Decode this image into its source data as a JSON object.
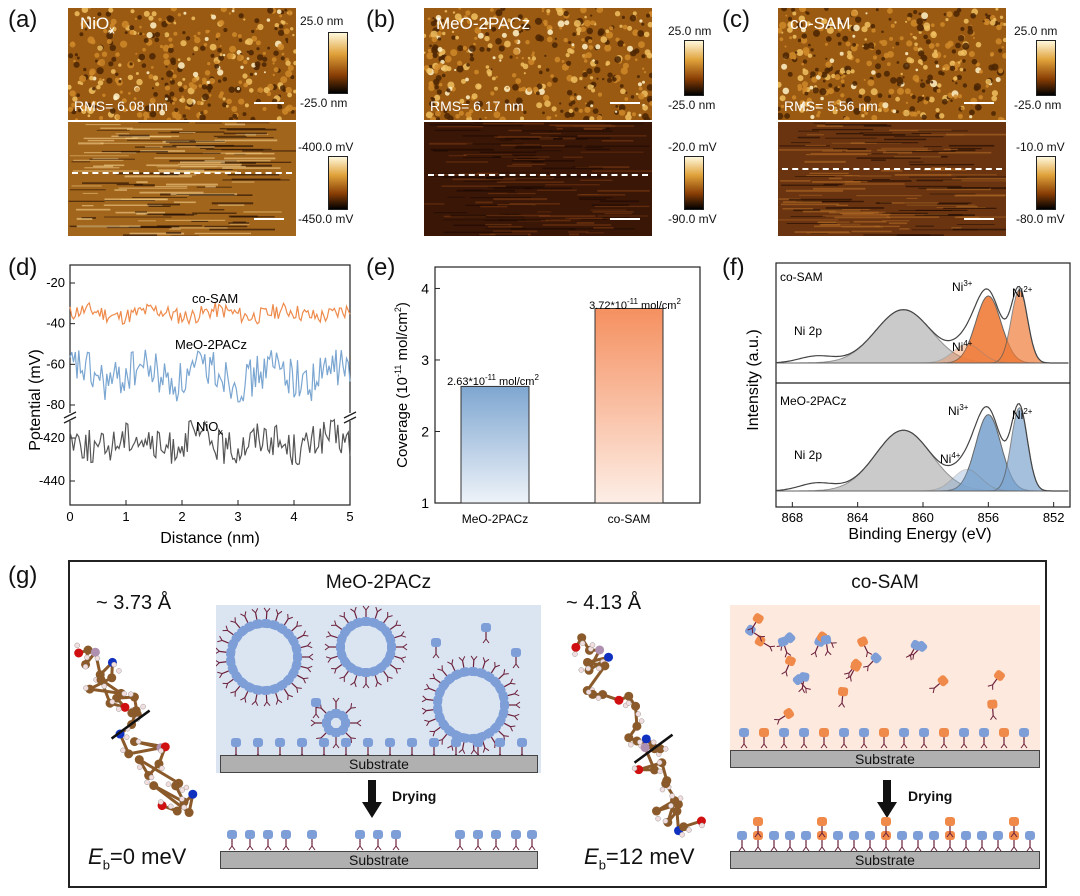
{
  "panel_labels": [
    "(a)",
    "(b)",
    "(c)",
    "(d)",
    "(e)",
    "(f)",
    "(g)"
  ],
  "afm": [
    {
      "sample": "NiO",
      "sample_sub": "x",
      "rms": "RMS= 6.08 nm",
      "height_max": "25.0 nm",
      "height_min": "-25.0 nm",
      "pot_max": "-400.0 mV",
      "pot_min": "-450.0 mV"
    },
    {
      "sample": "MeO-2PACz",
      "sample_sub": "",
      "rms": "RMS= 6.17 nm",
      "height_max": "25.0 nm",
      "height_min": "-25.0 nm",
      "pot_max": "-20.0 mV",
      "pot_min": "-90.0 mV"
    },
    {
      "sample": "co-SAM",
      "sample_sub": "",
      "rms": "RMS= 5.56 nm",
      "height_max": "25.0 nm",
      "height_min": "-25.0 nm",
      "pot_max": "-10.0 mV",
      "pot_min": "-80.0 mV"
    }
  ],
  "chart_data": [
    {
      "type": "line",
      "panel": "d",
      "xlabel": "Distance (nm)",
      "ylabel": "Potential (mV)",
      "xlim": [
        0,
        5
      ],
      "x_ticks": [
        0,
        1,
        2,
        3,
        4,
        5
      ],
      "y_ticks_upper": [
        -20,
        -40,
        -60,
        -80
      ],
      "y_ticks_lower": [
        -420,
        -440
      ],
      "axis_break": true,
      "series": [
        {
          "name": "co-SAM",
          "mean": -35,
          "amplitude": 4,
          "color": "#ee8a4a"
        },
        {
          "name": "MeO-2PACz",
          "mean": -65,
          "amplitude": 10,
          "color": "#7aa6d1"
        },
        {
          "name": "NiO",
          "name_sub": "x",
          "mean": -422,
          "amplitude": 8,
          "color": "#555555"
        }
      ]
    },
    {
      "type": "bar",
      "panel": "e",
      "categories": [
        "MeO-2PACz",
        "co-SAM"
      ],
      "values": [
        2.63,
        3.72
      ],
      "value_labels": [
        "2.63*10",
        "3.72*10"
      ],
      "value_label_exp": "-11",
      "value_label_unit": " mol/cm",
      "value_label_unit_exp": "2",
      "ylabel_parts": [
        "Coverage (10",
        "-11",
        " mol/cm",
        "2",
        ")"
      ],
      "ylim": [
        1.0,
        4.3
      ],
      "y_ticks": [
        1,
        2,
        3,
        4
      ],
      "colors": [
        "#7ea6d0",
        "#f59060"
      ]
    },
    {
      "type": "area",
      "panel": "f",
      "xlabel": "Binding Energy (eV)",
      "ylabel": "Intensity (a.u.)",
      "xlim": [
        869,
        851
      ],
      "x_ticks": [
        868,
        864,
        860,
        856,
        852
      ],
      "subplots": [
        {
          "name": "co-SAM",
          "peak_labels": [
            "Ni 2p",
            "Ni",
            "Ni",
            "Ni"
          ],
          "peak_sups": [
            "",
            "3+",
            "2+",
            "4+"
          ],
          "fill_color": "#f07d3a"
        },
        {
          "name": "MeO-2PACz",
          "peak_labels": [
            "Ni 2p",
            "Ni",
            "Ni",
            "Ni"
          ],
          "peak_sups": [
            "",
            "3+",
            "2+",
            "4+"
          ],
          "fill_color": "#7ea6d0"
        }
      ]
    }
  ],
  "schematic": {
    "left_distance": "~ 3.73 Å",
    "right_distance": "~ 4.13 Å",
    "left_eb_label": "E",
    "left_eb_sub": "b",
    "left_eb_value": "=0 meV",
    "right_eb_label": "E",
    "right_eb_sub": "b",
    "right_eb_value": "=12 meV",
    "left_title": "MeO-2PACz",
    "right_title": "co-SAM",
    "substrate": "Substrate",
    "drying": "Drying"
  }
}
